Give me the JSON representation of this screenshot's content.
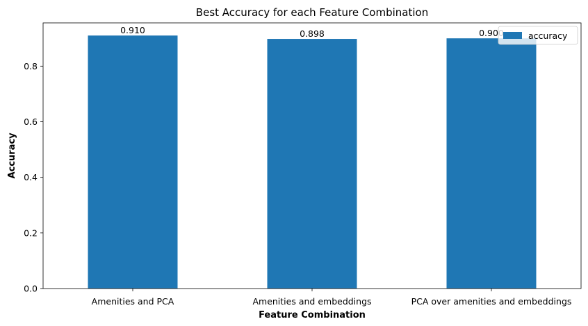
{
  "chart_data": {
    "type": "bar",
    "title": "Best Accuracy for each Feature Combination",
    "xlabel": "Feature Combination",
    "ylabel": "Accuracy",
    "categories": [
      "Amenities and PCA",
      "Amenities and embeddings",
      "PCA over amenities and embeddings"
    ],
    "series": [
      {
        "name": "accuracy",
        "values": [
          0.91,
          0.898,
          0.9
        ],
        "color": "#1f77b4"
      }
    ],
    "value_labels": [
      "0.910",
      "0.898",
      "0.900"
    ],
    "yticks": [
      "0.0",
      "0.2",
      "0.4",
      "0.6",
      "0.8"
    ],
    "ylim": [
      0,
      0.9555
    ],
    "grid": false,
    "legend_position": "top-right"
  }
}
